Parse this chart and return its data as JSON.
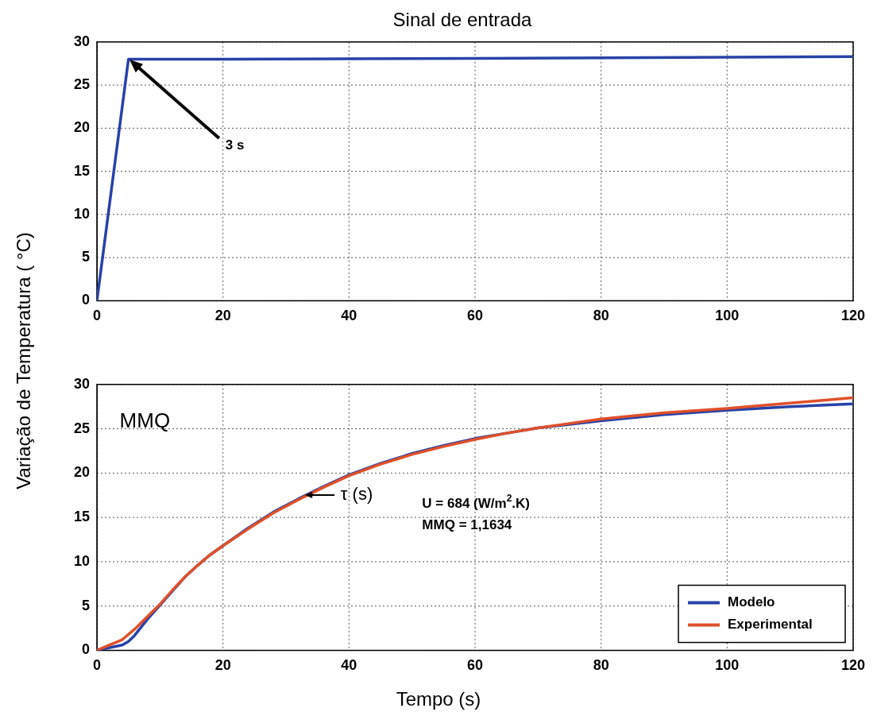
{
  "chart_data": [
    {
      "type": "line",
      "title": "Sinal de entrada",
      "ylabel": "Variação de Temperatura ( °C)",
      "xlim": [
        0,
        120
      ],
      "ylim": [
        0,
        30
      ],
      "xticks": [
        0,
        20,
        40,
        60,
        80,
        100,
        120
      ],
      "yticks": [
        0,
        5,
        10,
        15,
        20,
        25,
        30
      ],
      "grid": true,
      "legend": false,
      "series": [
        {
          "color": "#2742a8",
          "x": [
            0,
            5,
            20,
            60,
            120
          ],
          "values": [
            0,
            28,
            28,
            28.1,
            28.3
          ]
        }
      ],
      "annotations": [
        "3 s"
      ]
    },
    {
      "type": "line",
      "xlabel": "Tempo (s)",
      "xlim": [
        0,
        120
      ],
      "ylim": [
        0,
        30
      ],
      "xticks": [
        0,
        20,
        40,
        60,
        80,
        100,
        120
      ],
      "yticks": [
        0,
        5,
        10,
        15,
        20,
        25,
        30
      ],
      "grid": true,
      "legend": "bottom right",
      "series": [
        {
          "name": "Modelo",
          "color": "#2742a8",
          "x": [
            0,
            2,
            4,
            5,
            6,
            8,
            10,
            12,
            14,
            16,
            18,
            20,
            24,
            28,
            32,
            36,
            40,
            45,
            50,
            55,
            60,
            65,
            70,
            75,
            80,
            90,
            100,
            110,
            120
          ],
          "values": [
            0,
            0.3,
            0.6,
            1,
            1.7,
            3.5,
            5.1,
            6.7,
            8.3,
            9.6,
            10.8,
            11.8,
            13.8,
            15.6,
            17.1,
            18.5,
            19.8,
            21.1,
            22.2,
            23.1,
            23.9,
            24.5,
            25.1,
            25.5,
            25.9,
            26.6,
            27.1,
            27.5,
            27.8
          ]
        },
        {
          "name": "Experimental",
          "color": "#e0502a",
          "x": [
            0,
            2,
            4,
            6,
            8,
            10,
            12,
            14,
            16,
            18,
            20,
            24,
            28,
            32,
            36,
            40,
            45,
            50,
            55,
            60,
            65,
            70,
            75,
            80,
            90,
            100,
            110,
            120
          ],
          "values": [
            0,
            0.6,
            1.2,
            2.4,
            3.8,
            5.2,
            6.8,
            8.3,
            9.6,
            10.8,
            11.8,
            13.7,
            15.5,
            17,
            18.4,
            19.7,
            21,
            22.1,
            23,
            23.8,
            24.5,
            25.1,
            25.6,
            26.1,
            26.8,
            27.3,
            27.9,
            28.5
          ]
        }
      ],
      "annotations": [
        "MMQ",
        {
          "text": "τ (s)",
          "x": 33,
          "y": 17.5
        },
        "U = 684 (W/m$^{2}$.K)",
        "MMQ = 1,1634"
      ]
    }
  ]
}
